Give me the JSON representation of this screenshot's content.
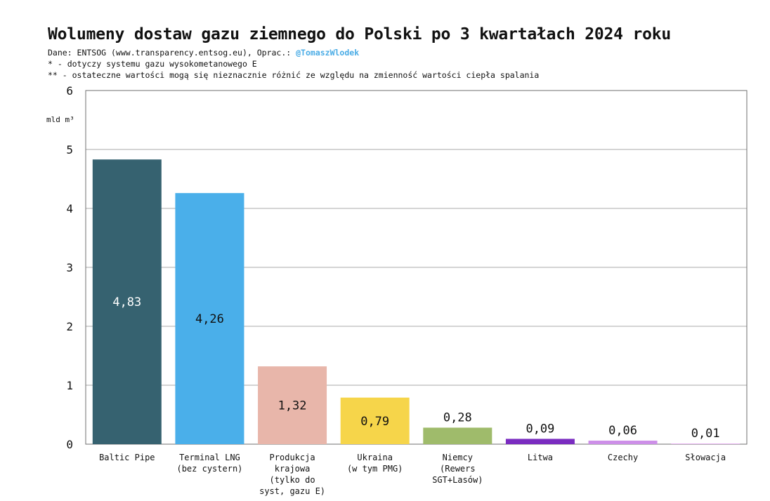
{
  "header": {
    "title": "Wolumeny dostaw gazu ziemnego do Polski po 3 kwartałach 2024 roku",
    "source_prefix": "Dane: ENTSOG (www.transparency.entsog.eu), Oprac.:",
    "author": "@TomaszWlodek",
    "footnote1": "* - dotyczy systemu gazu wysokometanowego E",
    "footnote2": "** - ostateczne wartości mogą się nieznacznie różnić ze względu na zmienność wartości ciepła spalania"
  },
  "chart_data": {
    "type": "bar",
    "title": "Wolumeny dostaw gazu ziemnego do Polski po 3 kwartałach 2024 roku",
    "ylabel": "mld m³",
    "xlabel": "",
    "ylim": [
      0,
      6
    ],
    "yticks": [
      0,
      1,
      2,
      3,
      4,
      5,
      6
    ],
    "grid": true,
    "categories": [
      [
        "Baltic Pipe"
      ],
      [
        "Terminal LNG",
        "(bez cystern)"
      ],
      [
        "Produkcja",
        "krajowa",
        "(tylko do",
        "syst, gazu E)"
      ],
      [
        "Ukraina",
        "(w tym PMG)"
      ],
      [
        "Niemcy",
        "(Rewers",
        "SGT+Lasów)"
      ],
      [
        "Litwa"
      ],
      [
        "Czechy"
      ],
      [
        "Słowacja"
      ]
    ],
    "values": [
      4.83,
      4.26,
      1.32,
      0.79,
      0.28,
      0.09,
      0.06,
      0.01
    ],
    "value_labels": [
      "4,83",
      "4,26",
      "1,32",
      "0,79",
      "0,28",
      "0,09",
      "0,06",
      "0,01"
    ],
    "colors": [
      "#366270",
      "#4aafea",
      "#e8b6aa",
      "#f6d54a",
      "#9fbb6b",
      "#7a2cc0",
      "#cd8fe8",
      "#e6b4f0"
    ],
    "label_colors": [
      "#ffffff",
      "#111111",
      "#111111",
      "#111111",
      "#111111",
      "#111111",
      "#111111",
      "#111111"
    ],
    "label_position": [
      "inside",
      "inside",
      "inside",
      "inside",
      "above",
      "above",
      "above",
      "above"
    ]
  }
}
